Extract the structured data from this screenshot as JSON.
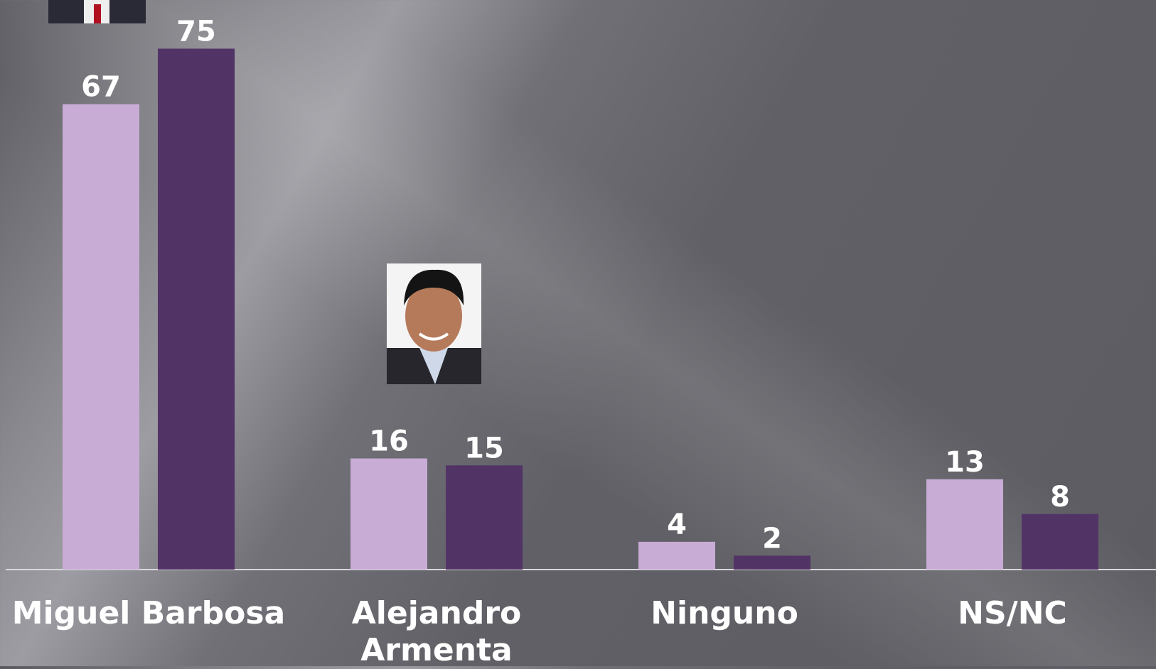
{
  "chart_data": {
    "type": "bar",
    "categories": [
      "Miguel Barbosa",
      "Alejandro Armenta",
      "Ninguno",
      "NS/NC"
    ],
    "series": [
      {
        "color": "#c8acd6",
        "values": [
          67,
          16,
          4,
          13
        ]
      },
      {
        "color": "#523366",
        "values": [
          75,
          15,
          2,
          8
        ]
      }
    ]
  }
}
